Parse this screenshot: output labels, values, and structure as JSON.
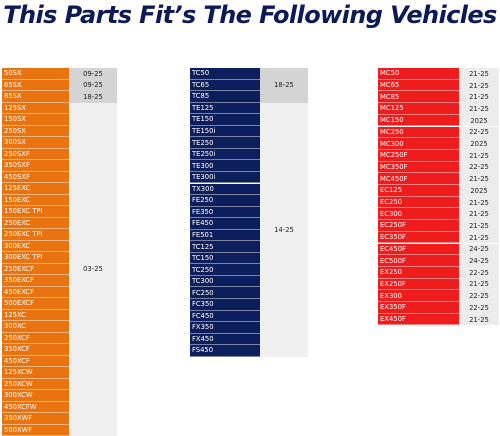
{
  "title": "This Parts Fit’s The Following Vehicles",
  "colors": {
    "title": "#0c1a55",
    "orange": "#e8730f",
    "navy": "#0c1f5c",
    "red": "#ee1c1c"
  },
  "tables": [
    {
      "id": "ktm",
      "color": "#e8730f",
      "top_rows": [
        {
          "model": "50SX",
          "years": "09-25"
        },
        {
          "model": "65SX",
          "years": "09-25"
        },
        {
          "model": "85SX",
          "years": "18-25"
        }
      ],
      "group_years": "03-25",
      "group_models": [
        "125SX",
        "150SX",
        "250SX",
        "300SX",
        "250SXF",
        "350SXF",
        "450SXF",
        "125EXC",
        "150EXC",
        "150EXC TPI",
        "250EXC",
        "250EXC TPI",
        "300EXC",
        "300EXC TPI",
        "250EXCF",
        "350EXCF",
        "450EXCF",
        "500EXCF",
        "125XC",
        "300XC",
        "250XCF",
        "350XCF",
        "450XCF",
        "125XCW",
        "250XCW",
        "300XCW",
        "450XCFW",
        "350XWF",
        "500XWF"
      ]
    },
    {
      "id": "husqvarna",
      "color": "#0c1f5c",
      "top_models": [
        "TC50",
        "TC65",
        "TC85"
      ],
      "top_years": "18-25",
      "group_years": "14-25",
      "group_models": [
        "TE125",
        "TE150",
        "TE150i",
        "TE250",
        "TE250i",
        "TE300",
        "TE300i",
        "TX300",
        "FE250",
        "FE350",
        "FE450",
        "FE501",
        "TC125",
        "TC150",
        "TC250",
        "TC300",
        "FC250",
        "FC350",
        "FC450",
        "FX350",
        "FX450",
        "FS450"
      ]
    },
    {
      "id": "gasgas",
      "color": "#ee1c1c",
      "rows": [
        {
          "model": "MC50",
          "years": "21-25"
        },
        {
          "model": "MC65",
          "years": "21-25"
        },
        {
          "model": "MC85",
          "years": "21-25"
        },
        {
          "model": "MC125",
          "years": "21-25"
        },
        {
          "model": "MC150",
          "years": "2025"
        },
        {
          "model": "MC250",
          "years": "22-25"
        },
        {
          "model": "MC300",
          "years": "2025"
        },
        {
          "model": "MC250F",
          "years": "21-25"
        },
        {
          "model": "MC350F",
          "years": "22-25"
        },
        {
          "model": "MC450F",
          "years": "21-25"
        },
        {
          "model": "EC125",
          "years": "2025"
        },
        {
          "model": "EC250",
          "years": "21-25"
        },
        {
          "model": "EC300",
          "years": "21-25"
        },
        {
          "model": "EC250F",
          "years": "21-25"
        },
        {
          "model": "EC350F",
          "years": "21-25"
        },
        {
          "model": "EC450F",
          "years": "24-25"
        },
        {
          "model": "EC500F",
          "years": "24-25"
        },
        {
          "model": "EX250",
          "years": "22-25"
        },
        {
          "model": "EX250F",
          "years": "21-25"
        },
        {
          "model": "EX300",
          "years": "22-25"
        },
        {
          "model": "EX350F",
          "years": "22-25"
        },
        {
          "model": "EX450F",
          "years": "21-25"
        }
      ]
    }
  ]
}
